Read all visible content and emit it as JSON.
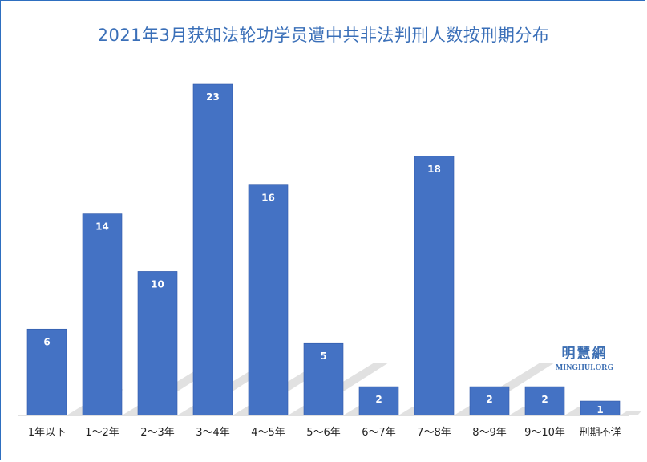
{
  "title": "2021年3月获知法轮功学员遭中共非法判刑人数按刑期分布",
  "watermark": {
    "chinese": "明慧網",
    "english": "MINGHUI.ORG"
  },
  "colors": {
    "bar": "#4472c4",
    "bar_dark": "#2f58a8",
    "title": "#3a6fb8",
    "frame": "#2e6fc0"
  },
  "chart_data": {
    "type": "bar",
    "title": "2021年3月获知法轮功学员遭中共非法判刑人数按刑期分布",
    "categories": [
      "1年以下",
      "1～2年",
      "2～3年",
      "3～4年",
      "4～5年",
      "5～6年",
      "6～7年",
      "7～8年",
      "8～9年",
      "9～10年",
      "刑期不详"
    ],
    "values": [
      6,
      14,
      10,
      23,
      16,
      5,
      2,
      18,
      2,
      2,
      1
    ],
    "xlabel": "",
    "ylabel": "",
    "ylim": [
      0,
      23
    ],
    "grid": false,
    "legend": "none",
    "data_labels": true
  }
}
